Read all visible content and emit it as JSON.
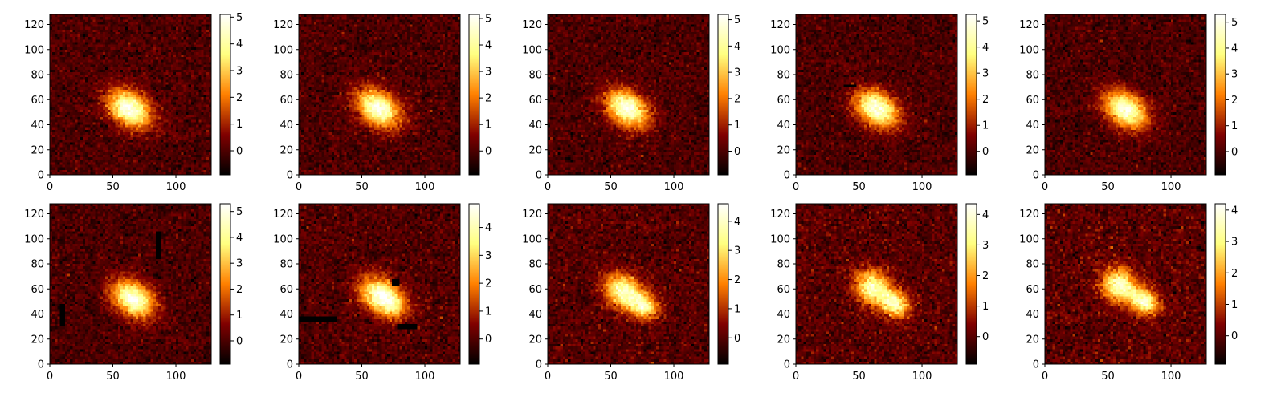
{
  "chart_data": [
    {
      "type": "heatmap",
      "row": 0,
      "col": 0,
      "xlim": [
        0,
        128
      ],
      "ylim": [
        0,
        128
      ],
      "xticks": [
        0,
        50,
        100
      ],
      "yticks": [
        0,
        20,
        40,
        60,
        80,
        100,
        120
      ],
      "colorbar": {
        "min": -0.9,
        "max": 5.1,
        "ticks": [
          0,
          1,
          2,
          3,
          4,
          5
        ]
      },
      "blobs": [
        {
          "x": 63,
          "y": 53,
          "sx": 13,
          "sy": 9,
          "angle": -35,
          "amp": 5.0
        }
      ],
      "artifacts": []
    },
    {
      "type": "heatmap",
      "row": 0,
      "col": 1,
      "xlim": [
        0,
        128
      ],
      "ylim": [
        0,
        128
      ],
      "xticks": [
        0,
        50,
        100
      ],
      "yticks": [
        0,
        20,
        40,
        60,
        80,
        100,
        120
      ],
      "colorbar": {
        "min": -0.9,
        "max": 5.15,
        "ticks": [
          0,
          1,
          2,
          3,
          4,
          5
        ]
      },
      "blobs": [
        {
          "x": 63,
          "y": 53,
          "sx": 13,
          "sy": 9,
          "angle": -35,
          "amp": 5.0
        }
      ],
      "artifacts": []
    },
    {
      "type": "heatmap",
      "row": 0,
      "col": 2,
      "xlim": [
        0,
        128
      ],
      "ylim": [
        0,
        128
      ],
      "xticks": [
        0,
        50,
        100
      ],
      "yticks": [
        0,
        20,
        40,
        60,
        80,
        100,
        120
      ],
      "colorbar": {
        "min": -0.9,
        "max": 5.2,
        "ticks": [
          0,
          1,
          2,
          3,
          4,
          5
        ]
      },
      "blobs": [
        {
          "x": 63,
          "y": 53,
          "sx": 13,
          "sy": 9,
          "angle": -35,
          "amp": 5.0
        }
      ],
      "artifacts": []
    },
    {
      "type": "heatmap",
      "row": 0,
      "col": 3,
      "xlim": [
        0,
        128
      ],
      "ylim": [
        0,
        128
      ],
      "xticks": [
        0,
        50,
        100
      ],
      "yticks": [
        0,
        20,
        40,
        60,
        80,
        100,
        120
      ],
      "colorbar": {
        "min": -0.9,
        "max": 5.25,
        "ticks": [
          0,
          1,
          2,
          3,
          4,
          5
        ]
      },
      "blobs": [
        {
          "x": 64,
          "y": 53,
          "sx": 13,
          "sy": 9,
          "angle": -35,
          "amp": 5.0
        }
      ],
      "artifacts": [
        {
          "x0": 38,
          "x1": 47,
          "y0": 70,
          "y1": 72
        }
      ]
    },
    {
      "type": "heatmap",
      "row": 0,
      "col": 4,
      "xlim": [
        0,
        128
      ],
      "ylim": [
        0,
        128
      ],
      "xticks": [
        0,
        50,
        100
      ],
      "yticks": [
        0,
        20,
        40,
        60,
        80,
        100,
        120
      ],
      "colorbar": {
        "min": -0.9,
        "max": 5.3,
        "ticks": [
          0,
          1,
          2,
          3,
          4,
          5
        ]
      },
      "blobs": [
        {
          "x": 64,
          "y": 52,
          "sx": 13,
          "sy": 9,
          "angle": -35,
          "amp": 5.0
        }
      ],
      "artifacts": []
    },
    {
      "type": "heatmap",
      "row": 1,
      "col": 0,
      "xlim": [
        0,
        128
      ],
      "ylim": [
        0,
        128
      ],
      "xticks": [
        0,
        50,
        100
      ],
      "yticks": [
        0,
        20,
        40,
        60,
        80,
        100,
        120
      ],
      "colorbar": {
        "min": -0.9,
        "max": 5.3,
        "ticks": [
          0,
          1,
          2,
          3,
          4,
          5
        ]
      },
      "blobs": [
        {
          "x": 66,
          "y": 52,
          "sx": 13,
          "sy": 9,
          "angle": -35,
          "amp": 5.0
        }
      ],
      "artifacts": [
        {
          "x0": 8,
          "x1": 12,
          "y0": 30,
          "y1": 47
        },
        {
          "x0": 84,
          "x1": 88,
          "y0": 85,
          "y1": 106
        }
      ]
    },
    {
      "type": "heatmap",
      "row": 1,
      "col": 1,
      "xlim": [
        0,
        128
      ],
      "ylim": [
        0,
        128
      ],
      "xticks": [
        0,
        50,
        100
      ],
      "yticks": [
        0,
        20,
        40,
        60,
        80,
        100,
        120
      ],
      "colorbar": {
        "min": -0.9,
        "max": 4.85,
        "ticks": [
          0,
          1,
          2,
          3,
          4
        ]
      },
      "blobs": [
        {
          "x": 66,
          "y": 54,
          "sx": 13,
          "sy": 9,
          "angle": -35,
          "amp": 4.6
        },
        {
          "x": 75,
          "y": 46,
          "sx": 8,
          "sy": 6,
          "angle": -35,
          "amp": 1.0
        }
      ],
      "artifacts": [
        {
          "x0": 0,
          "x1": 30,
          "y0": 34,
          "y1": 38
        },
        {
          "x0": 74,
          "x1": 80,
          "y0": 62,
          "y1": 68
        },
        {
          "x0": 78,
          "x1": 93,
          "y0": 29,
          "y1": 32
        }
      ]
    },
    {
      "type": "heatmap",
      "row": 1,
      "col": 2,
      "xlim": [
        0,
        128
      ],
      "ylim": [
        0,
        128
      ],
      "xticks": [
        0,
        50,
        100
      ],
      "yticks": [
        0,
        20,
        40,
        60,
        80,
        100,
        120
      ],
      "colorbar": {
        "min": -0.9,
        "max": 4.6,
        "ticks": [
          0,
          1,
          2,
          3,
          4
        ]
      },
      "blobs": [
        {
          "x": 60,
          "y": 58,
          "sx": 11,
          "sy": 9,
          "angle": -35,
          "amp": 4.0
        },
        {
          "x": 77,
          "y": 46,
          "sx": 8,
          "sy": 7,
          "angle": -35,
          "amp": 3.2
        }
      ],
      "artifacts": []
    },
    {
      "type": "heatmap",
      "row": 1,
      "col": 3,
      "xlim": [
        0,
        128
      ],
      "ylim": [
        0,
        128
      ],
      "xticks": [
        0,
        50,
        100
      ],
      "yticks": [
        0,
        20,
        40,
        60,
        80,
        100,
        120
      ],
      "colorbar": {
        "min": -0.9,
        "max": 4.35,
        "ticks": [
          0,
          1,
          2,
          3,
          4
        ]
      },
      "blobs": [
        {
          "x": 61,
          "y": 61,
          "sx": 10,
          "sy": 9,
          "angle": -35,
          "amp": 3.8
        },
        {
          "x": 79,
          "y": 48,
          "sx": 8,
          "sy": 7,
          "angle": -35,
          "amp": 3.5
        }
      ],
      "artifacts": []
    },
    {
      "type": "heatmap",
      "row": 1,
      "col": 4,
      "xlim": [
        0,
        128
      ],
      "ylim": [
        0,
        128
      ],
      "xticks": [
        0,
        50,
        100
      ],
      "yticks": [
        0,
        20,
        40,
        60,
        80,
        100,
        120
      ],
      "colorbar": {
        "min": -0.9,
        "max": 4.2,
        "ticks": [
          0,
          1,
          2,
          3,
          4
        ]
      },
      "blobs": [
        {
          "x": 59,
          "y": 63,
          "sx": 10,
          "sy": 9,
          "angle": -35,
          "amp": 3.7
        },
        {
          "x": 79,
          "y": 50,
          "sx": 8,
          "sy": 7,
          "angle": -35,
          "amp": 3.6
        }
      ],
      "artifacts": []
    }
  ]
}
